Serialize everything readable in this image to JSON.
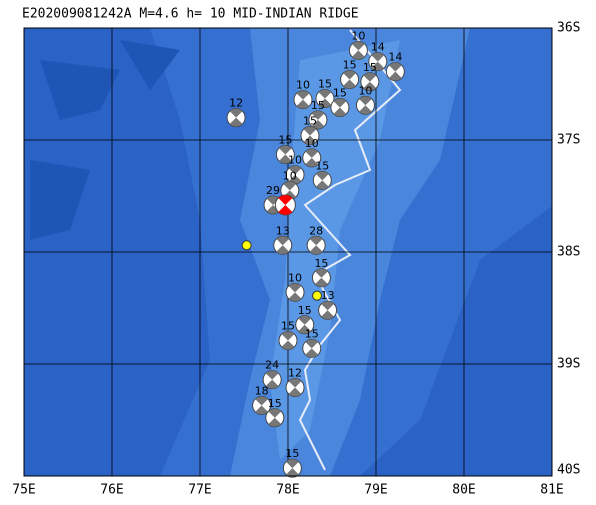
{
  "map": {
    "title": "E202009081242A M=4.6 h= 10 MID-INDIAN RIDGE",
    "xlim": [
      75,
      81
    ],
    "ylim": [
      -36,
      -40
    ],
    "xticks": [
      {
        "value": 75,
        "label": "75E"
      },
      {
        "value": 76,
        "label": "76E"
      },
      {
        "value": 77,
        "label": "77E"
      },
      {
        "value": 78,
        "label": "78E"
      },
      {
        "value": 79,
        "label": "79E"
      },
      {
        "value": 80,
        "label": "80E"
      },
      {
        "value": 81,
        "label": "81E"
      }
    ],
    "yticks": [
      {
        "value": -36,
        "label": "36S"
      },
      {
        "value": -37,
        "label": "37S"
      },
      {
        "value": -38,
        "label": "38S"
      },
      {
        "value": -39,
        "label": "39S"
      },
      {
        "value": -40,
        "label": "40S"
      }
    ],
    "main_event": {
      "lon": 77.97,
      "lat": -37.58,
      "color": "#ff0000"
    },
    "events": [
      {
        "lon": 77.41,
        "lat": -36.8,
        "depth": 12
      },
      {
        "lon": 78.8,
        "lat": -36.2,
        "depth": 10
      },
      {
        "lon": 79.02,
        "lat": -36.3,
        "depth": 14
      },
      {
        "lon": 79.22,
        "lat": -36.39,
        "depth": 14
      },
      {
        "lon": 78.7,
        "lat": -36.46,
        "depth": 15
      },
      {
        "lon": 78.93,
        "lat": -36.48,
        "depth": 15
      },
      {
        "lon": 78.17,
        "lat": -36.64,
        "depth": 10
      },
      {
        "lon": 78.42,
        "lat": -36.63,
        "depth": 15
      },
      {
        "lon": 78.59,
        "lat": -36.71,
        "depth": 15
      },
      {
        "lon": 78.88,
        "lat": -36.69,
        "depth": 10
      },
      {
        "lon": 78.34,
        "lat": -36.82,
        "depth": 15
      },
      {
        "lon": 78.25,
        "lat": -36.96,
        "depth": 15
      },
      {
        "lon": 77.97,
        "lat": -37.13,
        "depth": 15
      },
      {
        "lon": 78.27,
        "lat": -37.16,
        "depth": 10
      },
      {
        "lon": 78.39,
        "lat": -37.36,
        "depth": 15
      },
      {
        "lon": 78.08,
        "lat": -37.31,
        "depth": 10
      },
      {
        "lon": 78.02,
        "lat": -37.45,
        "depth": 10
      },
      {
        "lon": 77.83,
        "lat": -37.58,
        "depth": 29
      },
      {
        "lon": 77.94,
        "lat": -37.94,
        "depth": 13
      },
      {
        "lon": 78.32,
        "lat": -37.94,
        "depth": 28
      },
      {
        "lon": 78.38,
        "lat": -38.23,
        "depth": 15
      },
      {
        "lon": 78.08,
        "lat": -38.36,
        "depth": 10
      },
      {
        "lon": 78.45,
        "lat": -38.52,
        "depth": 13
      },
      {
        "lon": 78.19,
        "lat": -38.65,
        "depth": 15
      },
      {
        "lon": 78.0,
        "lat": -38.79,
        "depth": 15
      },
      {
        "lon": 78.27,
        "lat": -38.86,
        "depth": 15
      },
      {
        "lon": 77.82,
        "lat": -39.14,
        "depth": 24
      },
      {
        "lon": 78.08,
        "lat": -39.21,
        "depth": 12
      },
      {
        "lon": 77.7,
        "lat": -39.37,
        "depth": 18
      },
      {
        "lon": 77.85,
        "lat": -39.48,
        "depth": 15
      },
      {
        "lon": 78.05,
        "lat": -39.93,
        "depth": 15
      }
    ],
    "markers": [
      {
        "lon": 77.53,
        "lat": -37.94,
        "color": "#ffff00"
      },
      {
        "lon": 78.33,
        "lat": -38.39,
        "color": "#ffff00"
      }
    ]
  }
}
